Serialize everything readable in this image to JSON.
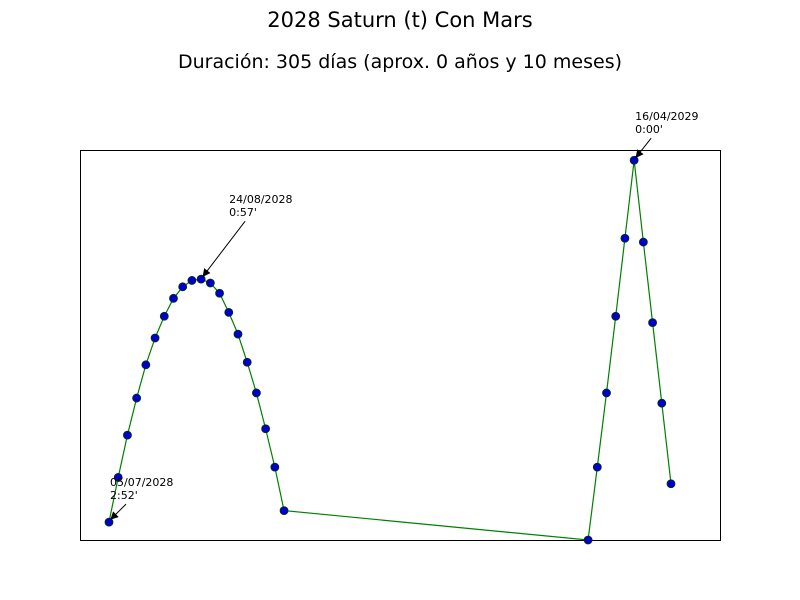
{
  "chart_data": {
    "type": "line",
    "title": "2028 Saturn (t) Con Mars",
    "subtitle": "Duración: 305 días (aprox. 0 años y 10 meses)",
    "xlabel": "",
    "ylabel": "",
    "grid": false,
    "axis_ticks_visible": false,
    "colors": {
      "line": "#008000",
      "marker_fill": "#0000cc",
      "marker_edge": "#003300"
    },
    "x_index_range": [
      0,
      61
    ],
    "y_range": [
      0,
      3.05
    ],
    "series": [
      {
        "values_by_index": [
          {
            "i": 0,
            "y": 0.14
          },
          {
            "i": 1,
            "y": 0.49
          },
          {
            "i": 2,
            "y": 0.82
          },
          {
            "i": 3,
            "y": 1.11
          },
          {
            "i": 4,
            "y": 1.37
          },
          {
            "i": 5,
            "y": 1.58
          },
          {
            "i": 6,
            "y": 1.75
          },
          {
            "i": 7,
            "y": 1.89
          },
          {
            "i": 8,
            "y": 1.98
          },
          {
            "i": 9,
            "y": 2.03
          },
          {
            "i": 10,
            "y": 2.04
          },
          {
            "i": 11,
            "y": 2.01
          },
          {
            "i": 12,
            "y": 1.93
          },
          {
            "i": 13,
            "y": 1.78
          },
          {
            "i": 14,
            "y": 1.61
          },
          {
            "i": 15,
            "y": 1.39
          },
          {
            "i": 16,
            "y": 1.15
          },
          {
            "i": 17,
            "y": 0.87
          },
          {
            "i": 18,
            "y": 0.57
          },
          {
            "i": 19,
            "y": 0.23
          },
          {
            "i": 52,
            "y": 0.0
          },
          {
            "i": 53,
            "y": 0.57
          },
          {
            "i": 54,
            "y": 1.15
          },
          {
            "i": 55,
            "y": 1.75
          },
          {
            "i": 56,
            "y": 2.36
          },
          {
            "i": 57,
            "y": 2.97
          },
          {
            "i": 58,
            "y": 2.33
          },
          {
            "i": 59,
            "y": 1.7
          },
          {
            "i": 60,
            "y": 1.07
          },
          {
            "i": 61,
            "y": 0.44
          }
        ]
      }
    ],
    "annotations": [
      {
        "i": 0,
        "date": "05/07/2028",
        "value": "2:52'"
      },
      {
        "i": 10,
        "date": "24/08/2028",
        "value": "0:57'"
      },
      {
        "i": 57,
        "date": "16/04/2029",
        "value": "0:00'"
      }
    ]
  }
}
